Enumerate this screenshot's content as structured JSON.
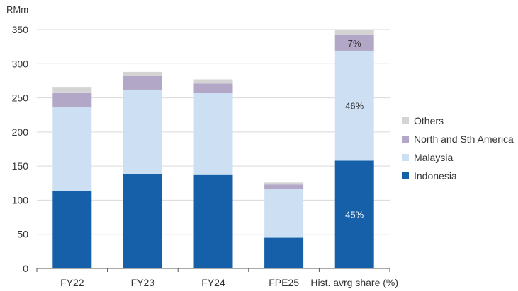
{
  "chart_data": {
    "type": "bar",
    "stacked": true,
    "ylabel": "RMm",
    "ylim": [
      0,
      350
    ],
    "yticks": [
      0,
      50,
      100,
      150,
      200,
      250,
      300,
      350
    ],
    "grid": true,
    "legend_position": "right",
    "categories": [
      "FY22",
      "FY23",
      "FY24",
      "FPE25",
      "Hist. avrg share (%)"
    ],
    "series": [
      {
        "name": "Indonesia",
        "color": "#1560a8",
        "values": [
          113,
          138,
          137,
          45,
          158
        ]
      },
      {
        "name": "Malaysia",
        "color": "#cde0f3",
        "values": [
          123,
          124,
          120,
          71,
          161
        ]
      },
      {
        "name": "North and Sth America",
        "color": "#b3a7c8",
        "values": [
          22,
          21,
          14,
          7,
          23
        ]
      },
      {
        "name": "Others",
        "color": "#d4d4d4",
        "values": [
          8,
          5,
          6,
          3,
          8
        ]
      }
    ],
    "annotations": [
      {
        "category": "Hist. avrg share (%)",
        "series": "Indonesia",
        "text": "45%",
        "color": "#ffffff"
      },
      {
        "category": "Hist. avrg share (%)",
        "series": "Malaysia",
        "text": "46%",
        "color": "#333333"
      },
      {
        "category": "Hist. avrg share (%)",
        "series": "North and Sth America",
        "text": "7%",
        "color": "#333333"
      }
    ],
    "axis_color": "#555555",
    "grid_color": "#d9d9d9"
  }
}
